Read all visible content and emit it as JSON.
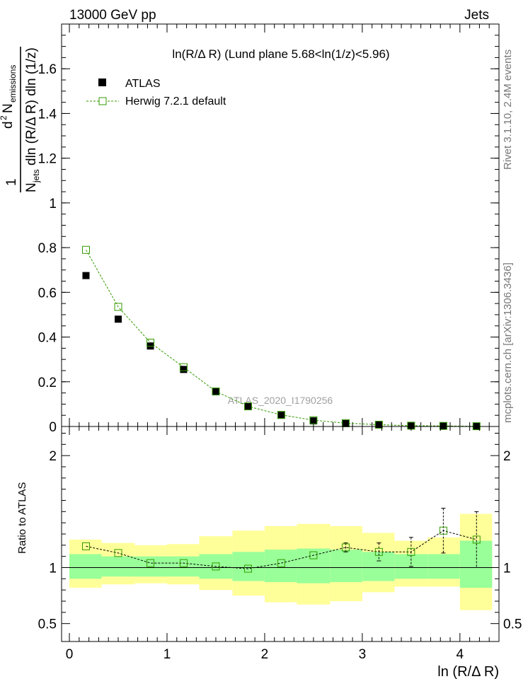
{
  "header": {
    "left_label": "13000 GeV pp",
    "right_label": "Jets"
  },
  "side_labels": {
    "rivet": "Rivet 3.1.10,  2.4M events",
    "mcplots": "mcplots.cern.ch [arXiv:1306.3436]"
  },
  "chart_data": [
    {
      "type": "scatter",
      "panel": "main",
      "title": "ln(R/Δ R) (Lund plane 5.68<ln(1/z)<5.96)",
      "watermark": "ATLAS_2020_I1790256",
      "ylabel_parts": {
        "frac_one": "1",
        "n": "N",
        "jets": "jets",
        "dln": "dln (R/Δ R) dln (1/z)",
        "d2": "d",
        "two": "2",
        "N2": "N",
        "emissions": "emissions"
      },
      "xlim": [
        -0.08,
        4.4
      ],
      "ylim": [
        0,
        1.8
      ],
      "yticks": [
        0,
        0.2,
        0.4,
        0.6,
        0.8,
        1,
        1.2,
        1.4,
        1.6
      ],
      "ytick_labels": [
        "0",
        "0.2",
        "0.4",
        "0.6",
        "0.8",
        "1",
        "1.2",
        "1.4",
        "1.6"
      ],
      "legend_position": "top-left",
      "x": [
        0.17,
        0.5,
        0.83,
        1.17,
        1.5,
        1.83,
        2.17,
        2.5,
        2.83,
        3.17,
        3.5,
        3.83,
        4.17
      ],
      "series": [
        {
          "name": "ATLAS",
          "marker": "filled-square",
          "color": "#000000",
          "values": [
            0.675,
            0.48,
            0.36,
            0.255,
            0.155,
            0.09,
            0.05,
            0.025,
            0.013,
            0.007,
            0.003,
            0.002,
            0.001
          ]
        },
        {
          "name": "Herwig 7.2.1 default",
          "marker": "open-square",
          "line": "dashed",
          "color": "#339900",
          "values": [
            0.79,
            0.535,
            0.375,
            0.265,
            0.157,
            0.09,
            0.052,
            0.028,
            0.015,
            0.008,
            0.0035,
            0.0025,
            0.0012
          ]
        }
      ]
    },
    {
      "type": "scatter",
      "panel": "ratio",
      "ylabel": "Ratio to ATLAS",
      "xlabel": "ln (R/Δ R)",
      "xlim": [
        -0.08,
        4.4
      ],
      "ylim": [
        0.34,
        2.26
      ],
      "yticks": [
        0.5,
        1,
        2
      ],
      "ytick_labels": [
        "0.5",
        "1",
        "2"
      ],
      "xticks": [
        0,
        1,
        2,
        3,
        4
      ],
      "xtick_labels": [
        "0",
        "1",
        "2",
        "3",
        "4"
      ],
      "reference_line": 1,
      "bin_edges": [
        0,
        0.33,
        0.67,
        1,
        1.33,
        1.67,
        2,
        2.33,
        2.67,
        3,
        3.33,
        3.67,
        4,
        4.33
      ],
      "band_inner": {
        "color": "#99ff99",
        "lo": [
          0.9,
          0.92,
          0.92,
          0.92,
          0.9,
          0.88,
          0.87,
          0.86,
          0.87,
          0.88,
          0.9,
          0.9,
          0.82
        ],
        "hi": [
          1.12,
          1.1,
          1.1,
          1.1,
          1.12,
          1.14,
          1.16,
          1.17,
          1.16,
          1.14,
          1.12,
          1.12,
          1.24
        ]
      },
      "band_outer": {
        "color": "#ffff99",
        "lo": [
          0.82,
          0.85,
          0.86,
          0.85,
          0.8,
          0.75,
          0.69,
          0.67,
          0.7,
          0.78,
          0.83,
          0.83,
          0.62
        ],
        "hi": [
          1.25,
          1.22,
          1.2,
          1.21,
          1.28,
          1.33,
          1.37,
          1.39,
          1.37,
          1.31,
          1.24,
          1.27,
          1.48
        ]
      },
      "series": [
        {
          "name": "Herwig 7.2.1 default",
          "marker": "open-square",
          "line": "dashed",
          "color": "#339900",
          "values": [
            1.19,
            1.13,
            1.04,
            1.04,
            1.01,
            0.99,
            1.04,
            1.11,
            1.18,
            1.14,
            1.14,
            1.33,
            1.25
          ],
          "err_lo": [
            0.005,
            0.005,
            0.005,
            0.005,
            0.005,
            0.005,
            0.01,
            0.02,
            0.04,
            0.08,
            0.13,
            0.2,
            0.25
          ],
          "err_hi": [
            0.005,
            0.005,
            0.005,
            0.005,
            0.005,
            0.005,
            0.01,
            0.02,
            0.04,
            0.08,
            0.13,
            0.2,
            0.25
          ]
        }
      ]
    }
  ]
}
